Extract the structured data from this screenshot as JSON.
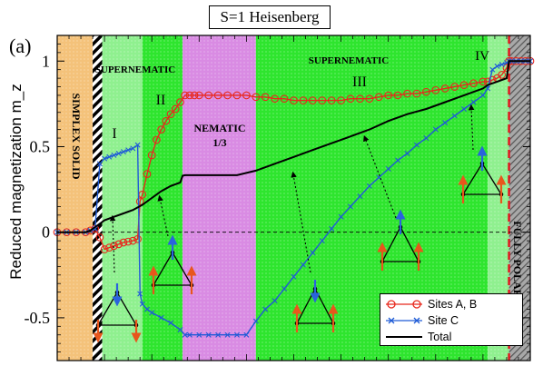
{
  "title": "S=1 Heisenberg",
  "panel_label": "(a)",
  "colors": {
    "sites_ab": "#e8281c",
    "site_c": "#1f5bd6",
    "total": "#000000",
    "supernematic_bg": "#2ee52e",
    "nematic_bg": "#d98be3",
    "simplex_bg": "#f4c27a",
    "polarized_bg": "#9a9a9a",
    "spin_up": "#e8561c",
    "spin_c": "#2a63dd",
    "boundary": "#e3141c"
  },
  "phase_labels": {
    "simplex": "SIMPLEX SOLID",
    "supernematic_left": "SUPERNEMATIC",
    "supernematic_right": "SUPERNEMATIC",
    "nematic_line1": "NEMATIC",
    "nematic_line2": "1/3",
    "polarized": "FULLY POLARIZED",
    "region_I": "I",
    "region_II": "II",
    "region_III": "III",
    "region_IV": "IV"
  },
  "chart_data": {
    "type": "line",
    "title": "S=1 Heisenberg",
    "xlabel": "",
    "ylabel": "Reduced magnetization m_z",
    "ylim": [
      -0.75,
      1.15
    ],
    "yticks": [
      -0.5,
      0,
      0.5,
      1
    ],
    "ytick_labels": [
      "-0.5",
      "0",
      "0.5",
      "1"
    ],
    "xlim": [
      0,
      100
    ],
    "grid": false,
    "legend_position": "bottom-right",
    "regions": [
      {
        "name": "simplex",
        "x": [
          0,
          7.5
        ]
      },
      {
        "name": "transition_hatch",
        "x": [
          7.5,
          9.5
        ]
      },
      {
        "name": "I",
        "x": [
          9.5,
          18
        ]
      },
      {
        "name": "II",
        "x": [
          18,
          26.5
        ]
      },
      {
        "name": "nematic",
        "x": [
          26.5,
          42
        ]
      },
      {
        "name": "III",
        "x": [
          42,
          91
        ]
      },
      {
        "name": "IV",
        "x": [
          91,
          95.5
        ]
      },
      {
        "name": "polarized",
        "x": [
          95.5,
          100
        ]
      }
    ],
    "series": [
      {
        "name": "Sites A, B",
        "x": [
          0,
          2,
          4,
          6,
          7,
          8,
          9,
          10,
          11,
          12,
          13,
          14,
          15,
          16,
          17,
          17.5,
          18,
          19,
          20,
          21,
          22,
          23,
          24,
          25,
          26,
          27,
          28,
          29,
          30,
          32,
          34,
          36,
          38,
          40,
          42,
          44,
          46,
          48,
          50,
          52,
          54,
          56,
          58,
          60,
          62,
          64,
          66,
          68,
          70,
          72,
          74,
          76,
          78,
          80,
          82,
          84,
          86,
          88,
          90,
          91,
          92,
          93,
          94,
          95,
          95.5,
          96,
          97,
          98,
          99,
          100
        ],
        "y": [
          0,
          0,
          0,
          0,
          0.01,
          0.02,
          -0.03,
          -0.1,
          -0.09,
          -0.08,
          -0.07,
          -0.06,
          -0.055,
          -0.05,
          -0.04,
          0.18,
          0.22,
          0.34,
          0.45,
          0.54,
          0.6,
          0.65,
          0.69,
          0.72,
          0.76,
          0.8,
          0.8,
          0.8,
          0.8,
          0.8,
          0.8,
          0.8,
          0.8,
          0.8,
          0.79,
          0.79,
          0.78,
          0.78,
          0.77,
          0.77,
          0.77,
          0.77,
          0.77,
          0.77,
          0.78,
          0.78,
          0.78,
          0.79,
          0.8,
          0.8,
          0.81,
          0.81,
          0.82,
          0.83,
          0.84,
          0.85,
          0.86,
          0.87,
          0.88,
          0.88,
          0.89,
          0.9,
          0.92,
          0.96,
          1.0,
          1.0,
          1.0,
          1.0,
          1.0,
          1.0
        ]
      },
      {
        "name": "Site C",
        "x": [
          0,
          2,
          4,
          6,
          7,
          8,
          9,
          10,
          11,
          12,
          13,
          14,
          15,
          16,
          17,
          17.5,
          18,
          19,
          20,
          22,
          24,
          26,
          27,
          28,
          30,
          32,
          34,
          36,
          38,
          40,
          42,
          44,
          46,
          48,
          50,
          52,
          54,
          56,
          58,
          60,
          62,
          64,
          66,
          68,
          70,
          72,
          74,
          76,
          78,
          80,
          82,
          84,
          86,
          88,
          90,
          91,
          92,
          93,
          94,
          95,
          95.5,
          96,
          97,
          98,
          99,
          100
        ],
        "y": [
          0,
          0,
          0,
          0,
          0.01,
          0.02,
          0.4,
          0.43,
          0.44,
          0.45,
          0.46,
          0.47,
          0.48,
          0.49,
          0.51,
          -0.36,
          -0.42,
          -0.45,
          -0.47,
          -0.5,
          -0.53,
          -0.57,
          -0.6,
          -0.6,
          -0.6,
          -0.6,
          -0.6,
          -0.6,
          -0.6,
          -0.6,
          -0.52,
          -0.45,
          -0.4,
          -0.33,
          -0.26,
          -0.19,
          -0.12,
          -0.05,
          0.02,
          0.09,
          0.15,
          0.21,
          0.27,
          0.32,
          0.37,
          0.42,
          0.46,
          0.51,
          0.55,
          0.6,
          0.64,
          0.68,
          0.72,
          0.76,
          0.8,
          0.84,
          0.95,
          0.97,
          0.98,
          0.99,
          1.0,
          1.0,
          1.0,
          1.0,
          1.0,
          1.0
        ]
      },
      {
        "name": "Total",
        "x": [
          0,
          6,
          7,
          8,
          9,
          10,
          12,
          14,
          16,
          18,
          20,
          22,
          24,
          26,
          26.5,
          27,
          30,
          34,
          38,
          42,
          46,
          50,
          54,
          58,
          62,
          66,
          70,
          74,
          78,
          82,
          86,
          90,
          91,
          93,
          95,
          95.5,
          100
        ],
        "y": [
          0,
          0,
          0.01,
          0.03,
          0.05,
          0.07,
          0.09,
          0.11,
          0.13,
          0.16,
          0.2,
          0.24,
          0.27,
          0.29,
          0.33,
          0.333,
          0.333,
          0.333,
          0.333,
          0.36,
          0.4,
          0.44,
          0.48,
          0.52,
          0.56,
          0.6,
          0.65,
          0.69,
          0.72,
          0.76,
          0.8,
          0.84,
          0.86,
          0.88,
          0.9,
          1.0,
          1.0
        ]
      }
    ]
  },
  "legend": {
    "entries": [
      "Sites A, B",
      "Site C",
      "Total"
    ]
  }
}
